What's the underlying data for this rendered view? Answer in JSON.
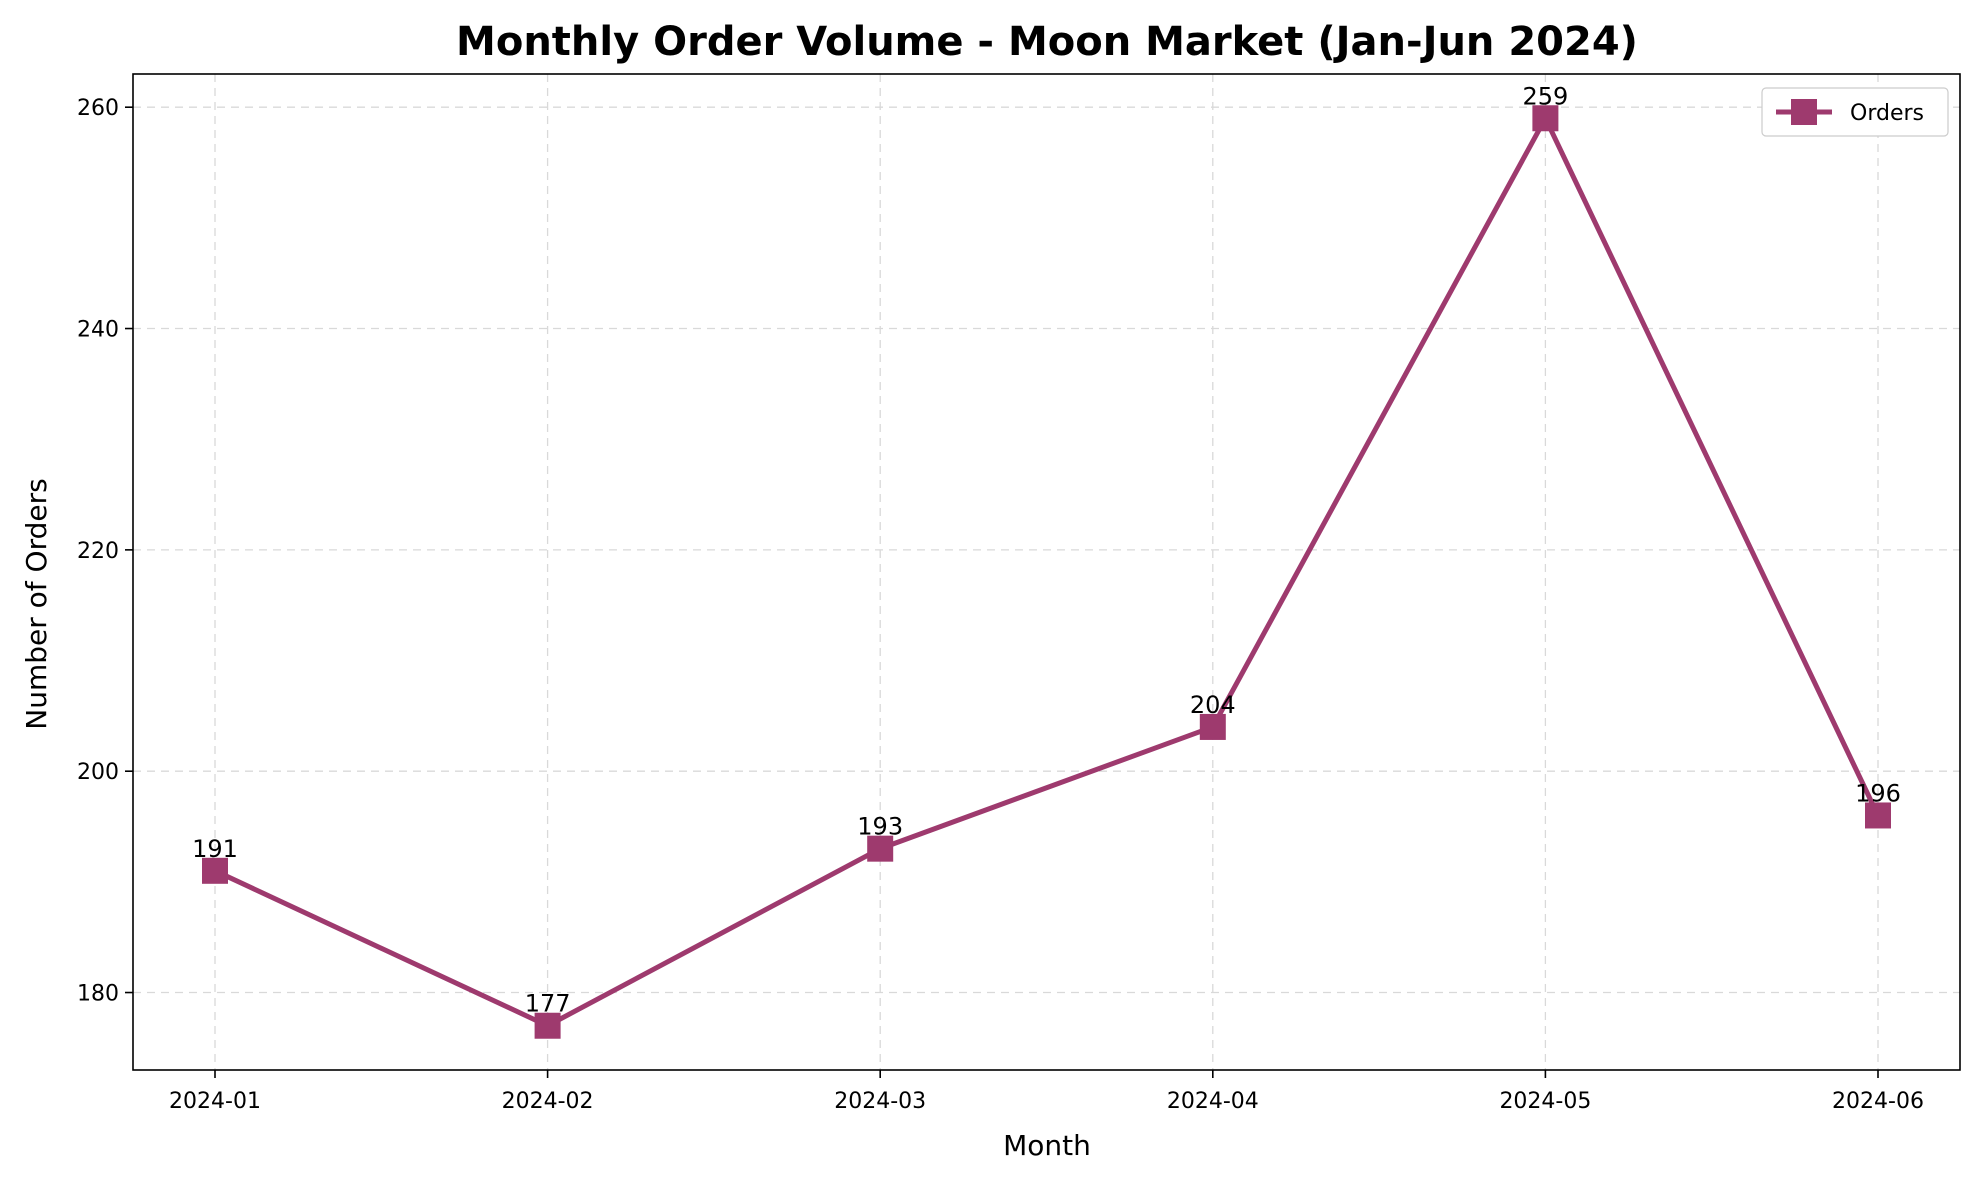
{
  "chart_data": {
    "type": "line",
    "title": "Monthly Order Volume - Moon Market (Jan-Jun 2024)",
    "xlabel": "Month",
    "ylabel": "Number of Orders",
    "categories": [
      "2024-01",
      "2024-02",
      "2024-03",
      "2024-04",
      "2024-05",
      "2024-06"
    ],
    "series": [
      {
        "name": "Orders",
        "values": [
          191,
          177,
          193,
          204,
          259,
          196
        ],
        "color": "#9e3a6e",
        "marker": "square"
      }
    ],
    "ylim": [
      173,
      263
    ],
    "yticks": [
      180,
      200,
      220,
      240,
      260
    ],
    "grid": true,
    "legend": "top-right"
  }
}
